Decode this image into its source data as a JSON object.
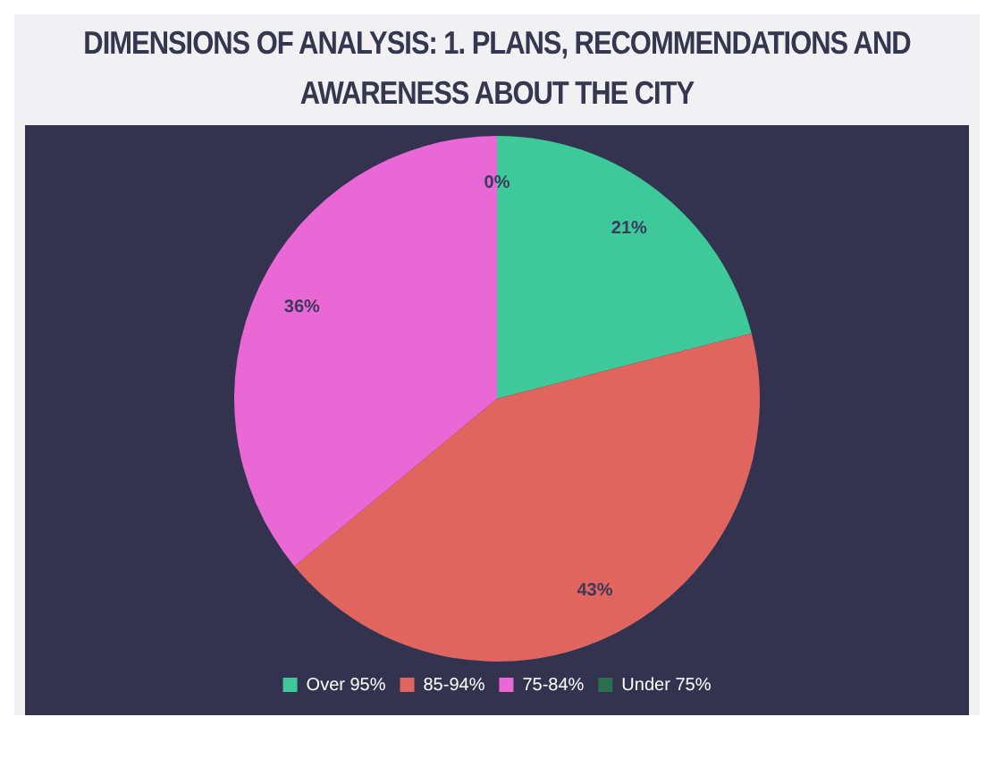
{
  "chart_data": {
    "type": "pie",
    "title": "DIMENSIONS OF ANALYSIS: 1. PLANS, RECOMMENDATIONS AND AWARENESS ABOUT THE CITY",
    "categories": [
      "Over 95%",
      "85-94%",
      "75-84%",
      "Under 75%"
    ],
    "values": [
      21,
      43,
      36,
      0
    ],
    "colors": [
      "#3ec99a",
      "#e0655f",
      "#ea68d6",
      "#2d6e4e"
    ],
    "value_labels": [
      "21%",
      "43%",
      "36%",
      "0%"
    ],
    "legend": "bottom"
  }
}
